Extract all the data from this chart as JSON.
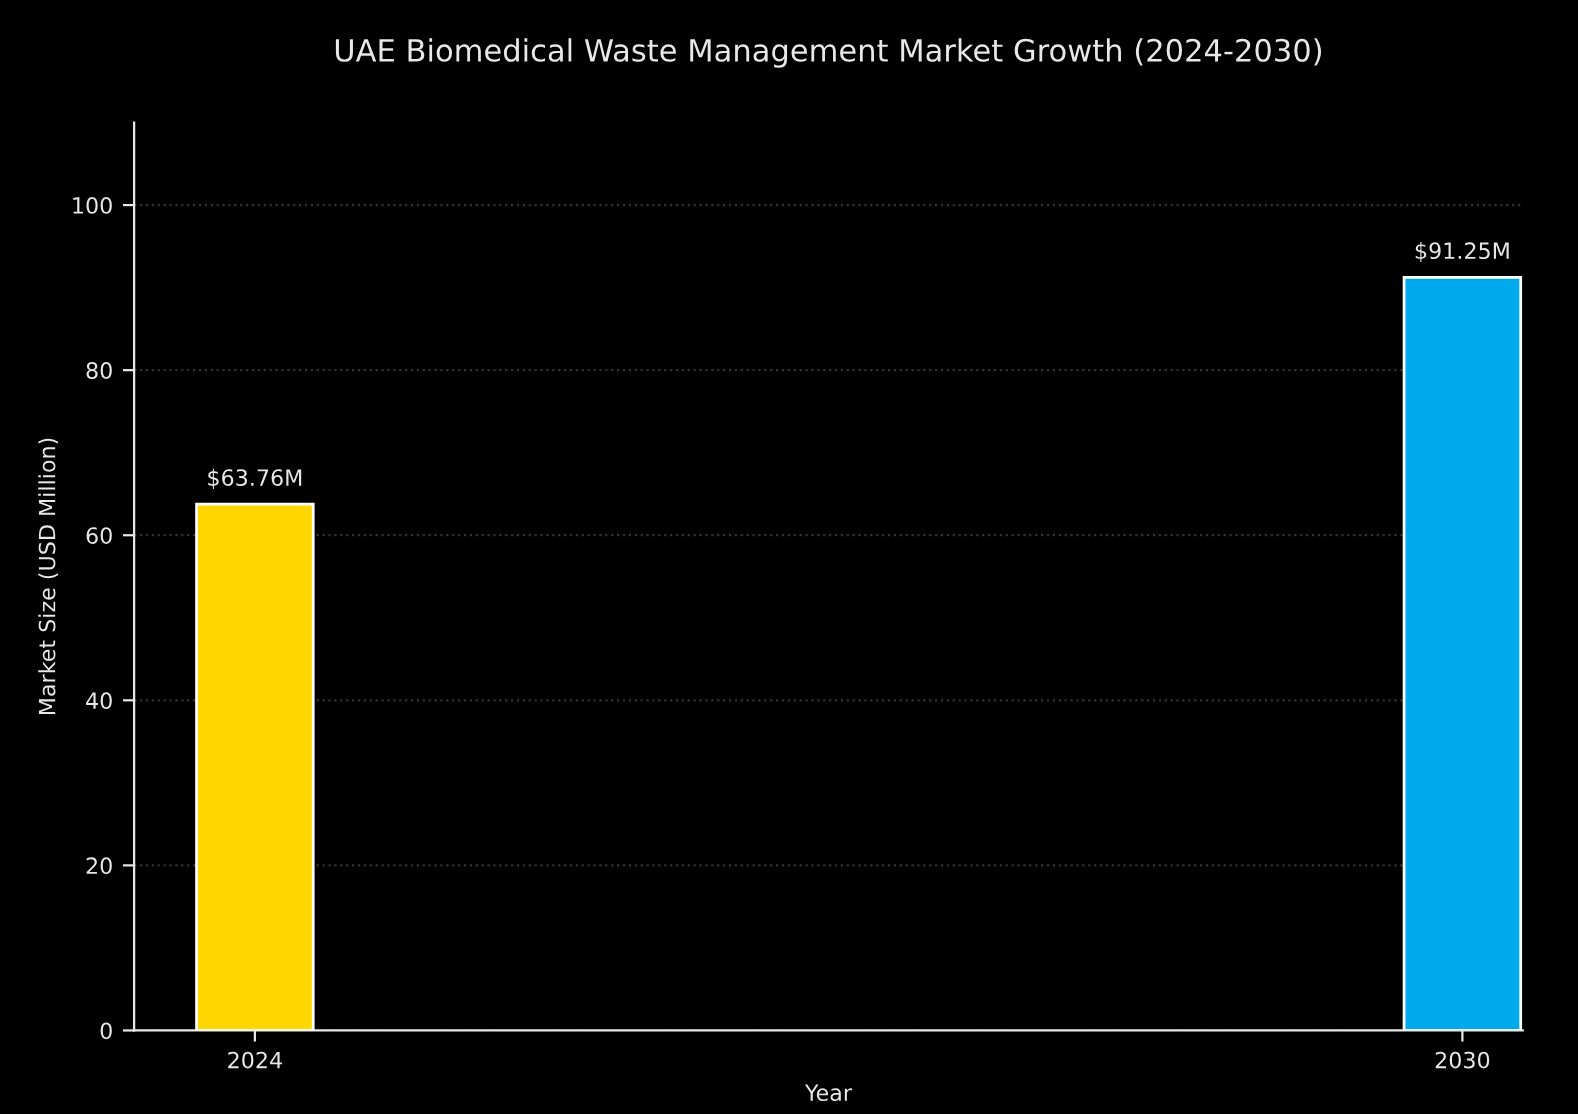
{
  "chart_data": {
    "type": "bar",
    "title": "UAE Biomedical Waste Management Market Growth (2024-2030)",
    "xlabel": "Year",
    "ylabel": "Market Size (USD Million)",
    "x": [
      2024,
      2030
    ],
    "xlim": [
      2023.4,
      2030.3
    ],
    "xticks": [
      2024,
      2030
    ],
    "values": [
      63.76,
      91.25
    ],
    "colors": [
      "#ffd700",
      "#00aaec"
    ],
    "value_labels": [
      "$63.76M",
      "$91.25M"
    ],
    "ylim": [
      0,
      110
    ],
    "yticks": [
      0,
      20,
      40,
      60,
      80,
      100
    ],
    "grid": "y"
  }
}
